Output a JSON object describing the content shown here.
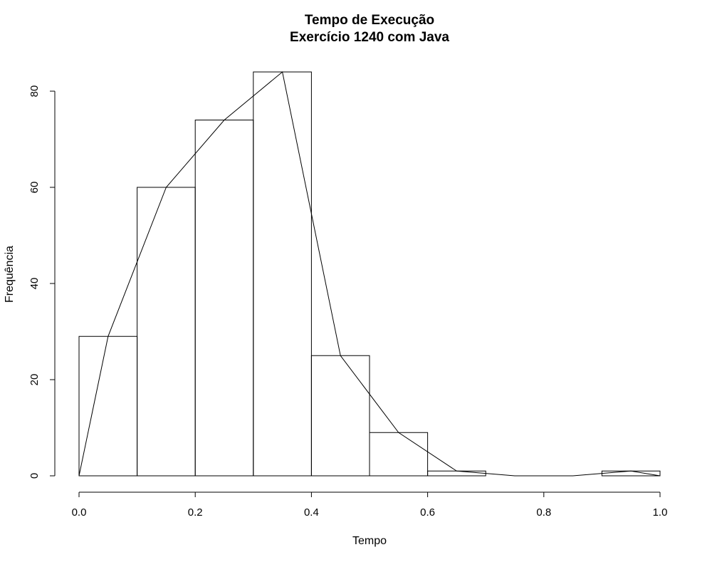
{
  "chart_data": {
    "type": "bar",
    "title": "Tempo de Execução",
    "subtitle": "Exercício 1240 com Java",
    "xlabel": "Tempo",
    "ylabel": "Frequência",
    "bins": [
      {
        "start": 0.0,
        "end": 0.1,
        "count": 29
      },
      {
        "start": 0.1,
        "end": 0.2,
        "count": 60
      },
      {
        "start": 0.2,
        "end": 0.3,
        "count": 74
      },
      {
        "start": 0.3,
        "end": 0.4,
        "count": 84
      },
      {
        "start": 0.4,
        "end": 0.5,
        "count": 25
      },
      {
        "start": 0.5,
        "end": 0.6,
        "count": 9
      },
      {
        "start": 0.6,
        "end": 0.7,
        "count": 1
      },
      {
        "start": 0.7,
        "end": 0.8,
        "count": 0
      },
      {
        "start": 0.8,
        "end": 0.9,
        "count": 0
      },
      {
        "start": 0.9,
        "end": 1.0,
        "count": 1
      }
    ],
    "frequency_polygon": {
      "x": [
        0.0,
        0.05,
        0.15,
        0.25,
        0.35,
        0.45,
        0.55,
        0.65,
        0.75,
        0.85,
        0.95,
        1.0
      ],
      "y": [
        0,
        29,
        60,
        74,
        84,
        25,
        9,
        1,
        0,
        0,
        1,
        0
      ]
    },
    "xlim": [
      0.0,
      1.0
    ],
    "ylim": [
      0,
      84
    ],
    "x_ticks": [
      "0.0",
      "0.2",
      "0.4",
      "0.6",
      "0.8",
      "1.0"
    ],
    "y_ticks": [
      "0",
      "20",
      "40",
      "60",
      "80"
    ],
    "grid": false,
    "legend": "none"
  }
}
